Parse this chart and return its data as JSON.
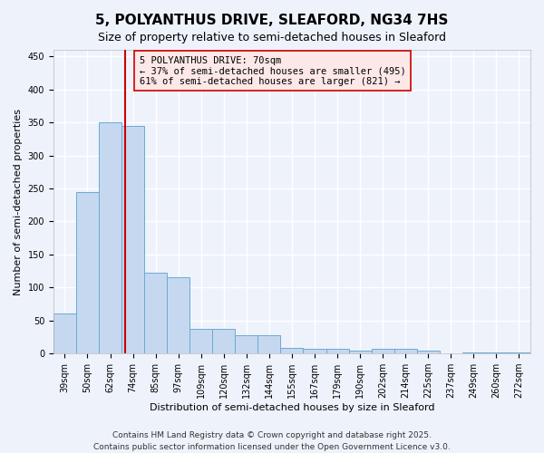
{
  "title": "5, POLYANTHUS DRIVE, SLEAFORD, NG34 7HS",
  "subtitle": "Size of property relative to semi-detached houses in Sleaford",
  "xlabel": "Distribution of semi-detached houses by size in Sleaford",
  "ylabel": "Number of semi-detached properties",
  "categories": [
    "39sqm",
    "50sqm",
    "62sqm",
    "74sqm",
    "85sqm",
    "97sqm",
    "109sqm",
    "120sqm",
    "132sqm",
    "144sqm",
    "155sqm",
    "167sqm",
    "179sqm",
    "190sqm",
    "202sqm",
    "214sqm",
    "225sqm",
    "237sqm",
    "249sqm",
    "260sqm",
    "272sqm"
  ],
  "values": [
    60,
    245,
    350,
    345,
    123,
    115,
    38,
    38,
    28,
    28,
    8,
    7,
    7,
    5,
    7,
    7,
    5,
    0,
    2,
    2,
    2
  ],
  "bar_color": "#c5d8f0",
  "bar_edge_color": "#6aaad4",
  "vline_x_idx": 2.67,
  "vline_color": "#cc0000",
  "annotation_line1": "5 POLYANTHUS DRIVE: 70sqm",
  "annotation_line2": "← 37% of semi-detached houses are smaller (495)",
  "annotation_line3": "61% of semi-detached houses are larger (821) →",
  "annotation_box_facecolor": "#fde8e8",
  "annotation_box_edgecolor": "#cc0000",
  "ylim": [
    0,
    460
  ],
  "yticks": [
    0,
    50,
    100,
    150,
    200,
    250,
    300,
    350,
    400,
    450
  ],
  "footer_text": "Contains HM Land Registry data © Crown copyright and database right 2025.\nContains public sector information licensed under the Open Government Licence v3.0.",
  "background_color": "#eef2fb",
  "grid_color": "#ffffff",
  "title_fontsize": 11,
  "subtitle_fontsize": 9,
  "annotation_fontsize": 7.5,
  "footer_fontsize": 6.5,
  "ylabel_fontsize": 8,
  "xlabel_fontsize": 8,
  "tick_fontsize": 7
}
